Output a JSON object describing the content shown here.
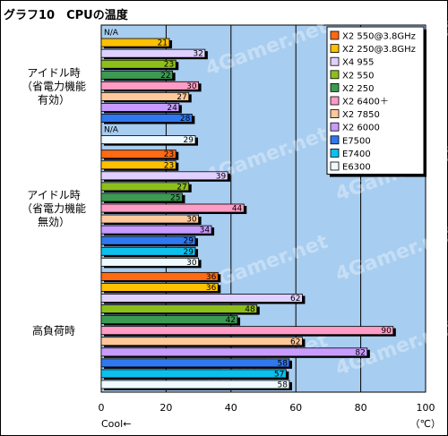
{
  "chart_data": {
    "type": "bar",
    "orientation": "horizontal",
    "title": "グラフ10　CPUの温度",
    "xlabel_left": "Cool←",
    "unit": "（℃）",
    "xlim": [
      0,
      100
    ],
    "xticks": [
      0,
      20,
      40,
      60,
      80,
      100
    ],
    "grid": "vertical",
    "legend_position": "top-right",
    "watermark": "4Gamer.net",
    "series": [
      {
        "name": "X2 550@3.8GHz",
        "color": "#ff6a13"
      },
      {
        "name": "X2 250@3.8GHz",
        "color": "#ffc000"
      },
      {
        "name": "X4 955",
        "color": "#e0d0ff"
      },
      {
        "name": "X2 550",
        "color": "#8dbf1a"
      },
      {
        "name": "X2 250",
        "color": "#3c9a52"
      },
      {
        "name": "X2 6400＋",
        "color": "#ff9cc6"
      },
      {
        "name": "X2 7850",
        "color": "#ffc89a"
      },
      {
        "name": "X2 6000",
        "color": "#c89cff"
      },
      {
        "name": "E7500",
        "color": "#2f78f0"
      },
      {
        "name": "E7400",
        "color": "#0cc0ee"
      },
      {
        "name": "E6300",
        "color": "#eefaff"
      }
    ],
    "groups": [
      {
        "label": [
          "アイドル時",
          "（省電力機能",
          "有効）"
        ],
        "values": [
          null,
          21,
          32,
          23,
          22,
          30,
          27,
          24,
          28,
          null,
          29
        ],
        "missing_label": "N/A"
      },
      {
        "label": [
          "アイドル時",
          "（省電力機能",
          "無効）"
        ],
        "values": [
          23,
          23,
          39,
          27,
          25,
          44,
          30,
          34,
          29,
          29,
          30
        ]
      },
      {
        "label": [
          "高負荷時"
        ],
        "values": [
          36,
          36,
          62,
          48,
          42,
          90,
          62,
          82,
          58,
          57,
          58
        ]
      }
    ]
  }
}
